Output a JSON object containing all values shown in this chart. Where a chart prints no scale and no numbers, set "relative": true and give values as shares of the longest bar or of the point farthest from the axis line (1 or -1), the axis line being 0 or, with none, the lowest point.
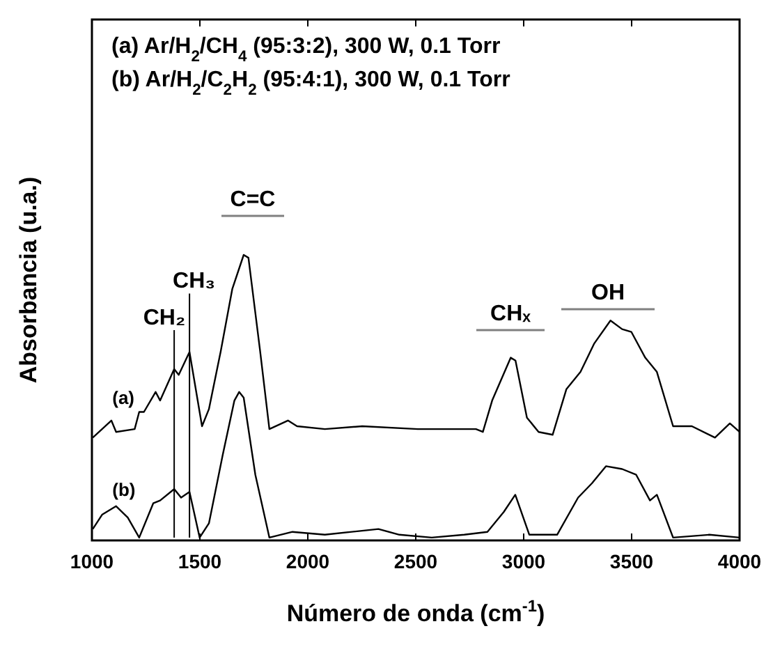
{
  "chart_data": {
    "type": "line",
    "relative": true,
    "xlabel": "Número de onda (cm$^{-1}$)",
    "ylabel": "Absorbancia (u.a.)",
    "annotations": [
      "(a) Ar/H$_{2}$/CH$_{4}$ (95:3:2),  300 W, 0.1 Torr",
      "(b) Ar/H$_{2}$/C$_{2}$H$_{2}$ (95:4:1), 300 W, 0.1 Torr",
      "C=C",
      "CHₓ",
      "OH"
    ],
    "xlim": [
      1000,
      4000
    ],
    "xticks": [
      1000,
      1500,
      2000,
      2500,
      3000,
      3500,
      4000
    ],
    "grid": false,
    "legend": false,
    "marker": "none",
    "line_style": "solid",
    "ref_lines": [
      {
        "axis": "x",
        "value": 1381,
        "label": "CH₂"
      },
      {
        "axis": "x",
        "value": 1452,
        "label": "CH₃"
      }
    ],
    "series": [
      {
        "name": "(a)",
        "color": "#000000",
        "x": [
          1004,
          1090,
          1112,
          1198,
          1219,
          1241,
          1295,
          1316,
          1381,
          1402,
          1452,
          1510,
          1542,
          1596,
          1650,
          1703,
          1725,
          1778,
          1822,
          1908,
          1950,
          2079,
          2252,
          2510,
          2779,
          2811,
          2854,
          2940,
          2962,
          3015,
          3069,
          3134,
          3198,
          3263,
          3327,
          3402,
          3456,
          3499,
          3563,
          3617,
          3692,
          3779,
          3886,
          3955,
          4000
        ],
        "values": [
          0.36,
          0.42,
          0.38,
          0.39,
          0.45,
          0.45,
          0.52,
          0.49,
          0.6,
          0.58,
          0.66,
          0.4,
          0.46,
          0.66,
          0.88,
          1,
          0.99,
          0.67,
          0.39,
          0.42,
          0.4,
          0.39,
          0.4,
          0.39,
          0.39,
          0.38,
          0.49,
          0.64,
          0.63,
          0.43,
          0.38,
          0.37,
          0.53,
          0.59,
          0.69,
          0.77,
          0.74,
          0.73,
          0.64,
          0.59,
          0.4,
          0.4,
          0.36,
          0.41,
          0.38
        ]
      },
      {
        "name": "(b)",
        "color": "#000000",
        "x": [
          1004,
          1047,
          1112,
          1166,
          1219,
          1284,
          1316,
          1381,
          1413,
          1452,
          1499,
          1542,
          1606,
          1660,
          1682,
          1703,
          1757,
          1822,
          1929,
          2079,
          2327,
          2424,
          2574,
          2725,
          2832,
          2908,
          2961,
          3026,
          3155,
          3252,
          3316,
          3381,
          3456,
          3521,
          3585,
          3617,
          3692,
          3860,
          4000
        ],
        "values": [
          0.04,
          0.09,
          0.12,
          0.08,
          0.01,
          0.13,
          0.14,
          0.18,
          0.15,
          0.17,
          0.01,
          0.06,
          0.3,
          0.49,
          0.52,
          0.5,
          0.23,
          0.01,
          0.03,
          0.02,
          0.04,
          0.02,
          0.01,
          0.02,
          0.03,
          0.1,
          0.16,
          0.02,
          0.02,
          0.15,
          0.2,
          0.26,
          0.25,
          0.23,
          0.14,
          0.16,
          0.01,
          0.02,
          0.01
        ]
      }
    ]
  }
}
